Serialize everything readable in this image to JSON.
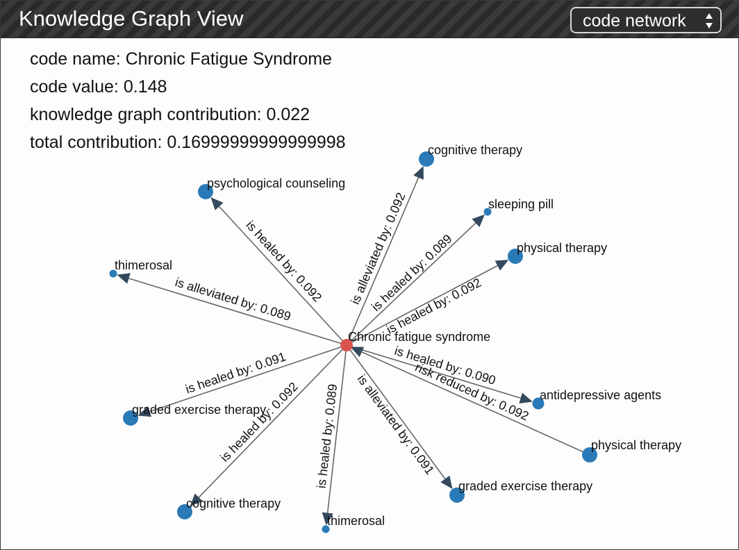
{
  "header": {
    "title": "Knowledge Graph View",
    "view_select": {
      "value": "code network"
    }
  },
  "info": {
    "code_name": "code name: Chronic Fatigue Syndrome",
    "code_value": "code value: 0.148",
    "kg_contribution": "knowledge graph contribution: 0.022",
    "total_contribution": "total contribution: 0.16999999999999998"
  },
  "colors": {
    "center_node": "#d9534f",
    "node": "#2a7ab8",
    "edge": "#666666",
    "arrow": "#34495e"
  },
  "graph": {
    "center": {
      "label": "Chronic fatigue syndrome"
    },
    "neighbors": [
      {
        "label": "cognitive therapy",
        "edge": "is alleviated by: 0.092",
        "direction": "out",
        "size": "large"
      },
      {
        "label": "sleeping pill",
        "edge": "is healed by: 0.089",
        "direction": "out",
        "size": "small"
      },
      {
        "label": "physical therapy",
        "edge": "is healed by: 0.092",
        "direction": "out",
        "size": "large"
      },
      {
        "label": "psychological counseling",
        "edge": "is healed by: 0.092",
        "direction": "out",
        "size": "large"
      },
      {
        "label": "thimerosal",
        "edge": "is alleviated by: 0.089",
        "direction": "out",
        "size": "small"
      },
      {
        "label": "antidepressive agents",
        "edge": "is healed by: 0.090",
        "direction": "out",
        "size": "medium"
      },
      {
        "label": "physical therapy",
        "edge": "risk reduced by: 0.092",
        "direction": "in",
        "size": "large"
      },
      {
        "label": "graded exercise therapy",
        "edge": "is healed by: 0.091",
        "direction": "out",
        "size": "large"
      },
      {
        "label": "cognitive therapy",
        "edge": "is healed by: 0.092",
        "direction": "out",
        "size": "large"
      },
      {
        "label": "thimerosal",
        "edge": "is healed by: 0.089",
        "direction": "out",
        "size": "small"
      },
      {
        "label": "graded exercise therapy",
        "edge": "is alleviated by: 0.091",
        "direction": "out",
        "size": "large"
      }
    ]
  }
}
